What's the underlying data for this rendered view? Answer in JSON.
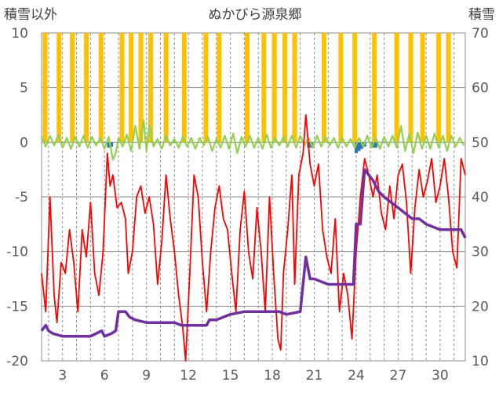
{
  "chart_data": {
    "type": "line",
    "title": "ぬかびら源泉郷",
    "left_axis_title": "積雪以外",
    "right_axis_title": "積雪",
    "x_range": [
      1.5,
      31.8
    ],
    "x_ticks": [
      3,
      6,
      9,
      12,
      15,
      18,
      21,
      24,
      27,
      30
    ],
    "x_tick_labels": [
      "3",
      "6",
      "9",
      "12",
      "15",
      "18",
      "21",
      "24",
      "27",
      "30"
    ],
    "y_left_range": [
      -20,
      10
    ],
    "y_left_ticks": [
      10,
      5,
      0,
      -5,
      -10,
      -15,
      -20
    ],
    "y_left_tick_labels": [
      "10",
      "5",
      "0",
      "-5",
      "-10",
      "-15",
      "-20"
    ],
    "y_right_range": [
      10,
      70
    ],
    "y_right_ticks": [
      70,
      60,
      50,
      40,
      30,
      20,
      10
    ],
    "y_right_tick_labels": [
      "70",
      "60",
      "50",
      "40",
      "30",
      "20",
      "10"
    ],
    "grid": "horizontal solid, vertical dashed",
    "legend": "none",
    "series": [
      {
        "key": "snowfall_bars",
        "axis": "left",
        "kind": "bars",
        "color": "#FFC000",
        "points": [
          [
            1.75,
            10
          ],
          [
            2.75,
            10
          ],
          [
            3.7,
            10
          ],
          [
            4.7,
            10
          ],
          [
            5.75,
            10
          ],
          [
            7.25,
            10
          ],
          [
            7.9,
            10
          ],
          [
            8.6,
            10
          ],
          [
            9.3,
            10
          ],
          [
            10.4,
            10
          ],
          [
            11.7,
            10
          ],
          [
            13.25,
            10
          ],
          [
            14.2,
            10
          ],
          [
            16.2,
            10
          ],
          [
            17.4,
            10
          ],
          [
            18.15,
            10
          ],
          [
            18.9,
            10
          ],
          [
            19.6,
            10
          ],
          [
            21.7,
            10
          ],
          [
            22.9,
            10
          ],
          [
            23.9,
            10
          ],
          [
            25.3,
            10
          ],
          [
            26.9,
            10
          ],
          [
            27.9,
            10
          ],
          [
            28.75,
            10
          ],
          [
            29.9,
            10
          ],
          [
            30.6,
            10
          ]
        ]
      },
      {
        "key": "rainfall_bars",
        "axis": "left",
        "kind": "bars",
        "color": "#2E75B6",
        "points": [
          [
            6.3,
            -0.5
          ],
          [
            6.5,
            -0.4
          ],
          [
            20.6,
            -0.5
          ],
          [
            20.8,
            -0.5
          ],
          [
            24.0,
            -1.0
          ],
          [
            24.2,
            -0.8
          ],
          [
            24.4,
            -0.6
          ],
          [
            24.6,
            -0.4
          ],
          [
            25.2,
            -0.5
          ],
          [
            25.4,
            -0.5
          ]
        ]
      },
      {
        "key": "wind_line",
        "axis": "left",
        "kind": "line",
        "color": "#92D050",
        "points": [
          [
            1.5,
            0.5
          ],
          [
            1.8,
            -0.4
          ],
          [
            2.1,
            0.6
          ],
          [
            2.4,
            -0.3
          ],
          [
            2.7,
            0.7
          ],
          [
            3.0,
            -0.5
          ],
          [
            3.3,
            0.4
          ],
          [
            3.6,
            -0.6
          ],
          [
            3.9,
            0.5
          ],
          [
            4.2,
            -0.4
          ],
          [
            4.5,
            0.6
          ],
          [
            4.8,
            -0.5
          ],
          [
            5.1,
            0.5
          ],
          [
            5.4,
            -0.3
          ],
          [
            5.7,
            0.4
          ],
          [
            6.0,
            -0.6
          ],
          [
            6.3,
            0.5
          ],
          [
            6.6,
            -1.6
          ],
          [
            6.8,
            -1.0
          ],
          [
            7.0,
            0.4
          ],
          [
            7.3,
            -0.4
          ],
          [
            7.6,
            0.7
          ],
          [
            7.9,
            -0.8
          ],
          [
            8.2,
            1.5
          ],
          [
            8.5,
            -0.6
          ],
          [
            8.8,
            2.0
          ],
          [
            9.0,
            -0.8
          ],
          [
            9.2,
            1.5
          ],
          [
            9.5,
            -0.4
          ],
          [
            9.8,
            0.3
          ],
          [
            10.1,
            -0.6
          ],
          [
            10.4,
            0.6
          ],
          [
            10.7,
            -0.3
          ],
          [
            11.0,
            0.3
          ],
          [
            11.3,
            -0.5
          ],
          [
            11.6,
            0.5
          ],
          [
            11.9,
            -0.4
          ],
          [
            12.2,
            0.4
          ],
          [
            12.5,
            -0.6
          ],
          [
            12.8,
            0.4
          ],
          [
            13.1,
            -0.3
          ],
          [
            13.4,
            0.5
          ],
          [
            13.7,
            -0.8
          ],
          [
            14.0,
            0.3
          ],
          [
            14.3,
            -0.5
          ],
          [
            14.6,
            0.6
          ],
          [
            14.9,
            -0.6
          ],
          [
            15.2,
            0.8
          ],
          [
            15.5,
            -1.0
          ],
          [
            15.8,
            0.5
          ],
          [
            16.1,
            -0.4
          ],
          [
            16.4,
            0.6
          ],
          [
            16.7,
            -0.5
          ],
          [
            17.0,
            0.4
          ],
          [
            17.3,
            -0.6
          ],
          [
            17.6,
            0.7
          ],
          [
            17.9,
            -0.5
          ],
          [
            18.2,
            0.4
          ],
          [
            18.5,
            -0.3
          ],
          [
            18.8,
            0.5
          ],
          [
            19.1,
            -0.4
          ],
          [
            19.4,
            0.6
          ],
          [
            19.7,
            -0.5
          ],
          [
            20.0,
            0.6
          ],
          [
            20.3,
            -0.3
          ],
          [
            20.6,
            0.4
          ],
          [
            20.9,
            -0.5
          ],
          [
            21.2,
            0.6
          ],
          [
            21.5,
            -0.4
          ],
          [
            21.8,
            0.5
          ],
          [
            22.1,
            -0.3
          ],
          [
            22.4,
            0.4
          ],
          [
            22.7,
            -0.5
          ],
          [
            23.0,
            0.4
          ],
          [
            23.3,
            -0.4
          ],
          [
            23.6,
            0.3
          ],
          [
            23.9,
            -0.5
          ],
          [
            24.2,
            0.4
          ],
          [
            24.5,
            -0.4
          ],
          [
            24.8,
            0.6
          ],
          [
            25.1,
            -0.5
          ],
          [
            25.4,
            0.4
          ],
          [
            25.7,
            -0.6
          ],
          [
            26.0,
            0.5
          ],
          [
            26.3,
            -0.4
          ],
          [
            26.6,
            0.6
          ],
          [
            26.9,
            -0.5
          ],
          [
            27.2,
            1.5
          ],
          [
            27.5,
            -0.8
          ],
          [
            27.8,
            0.8
          ],
          [
            28.1,
            -1.0
          ],
          [
            28.4,
            0.9
          ],
          [
            28.7,
            -0.6
          ],
          [
            29.0,
            0.6
          ],
          [
            29.3,
            -0.6
          ],
          [
            29.6,
            0.8
          ],
          [
            29.9,
            -0.5
          ],
          [
            30.2,
            0.6
          ],
          [
            30.5,
            -0.8
          ],
          [
            30.8,
            0.6
          ],
          [
            31.1,
            -0.4
          ],
          [
            31.4,
            0.4
          ],
          [
            31.7,
            -0.3
          ]
        ]
      },
      {
        "key": "temperature_line",
        "axis": "left",
        "kind": "line",
        "color": "#FF0000",
        "points": [
          [
            1.5,
            -12
          ],
          [
            1.8,
            -15.5
          ],
          [
            2.1,
            -5
          ],
          [
            2.4,
            -14
          ],
          [
            2.6,
            -16.5
          ],
          [
            2.9,
            -11
          ],
          [
            3.2,
            -12
          ],
          [
            3.5,
            -8
          ],
          [
            3.8,
            -11
          ],
          [
            4.1,
            -15.5
          ],
          [
            4.4,
            -8
          ],
          [
            4.7,
            -10.5
          ],
          [
            5.0,
            -5.5
          ],
          [
            5.3,
            -12
          ],
          [
            5.6,
            -14
          ],
          [
            5.9,
            -10
          ],
          [
            6.2,
            -1
          ],
          [
            6.4,
            -4
          ],
          [
            6.6,
            -3
          ],
          [
            6.9,
            -6
          ],
          [
            7.2,
            -5.5
          ],
          [
            7.5,
            -7
          ],
          [
            7.7,
            -12
          ],
          [
            8.0,
            -10
          ],
          [
            8.3,
            -5
          ],
          [
            8.6,
            -4
          ],
          [
            8.9,
            -6.5
          ],
          [
            9.2,
            -5
          ],
          [
            9.5,
            -7.5
          ],
          [
            9.8,
            -13
          ],
          [
            10.1,
            -9
          ],
          [
            10.4,
            -3
          ],
          [
            10.7,
            -7
          ],
          [
            11.0,
            -10
          ],
          [
            11.3,
            -14
          ],
          [
            11.6,
            -17
          ],
          [
            11.8,
            -20
          ],
          [
            12.1,
            -12
          ],
          [
            12.4,
            -3
          ],
          [
            12.7,
            -5
          ],
          [
            13.0,
            -11
          ],
          [
            13.3,
            -15.5
          ],
          [
            13.6,
            -10
          ],
          [
            13.9,
            -6
          ],
          [
            14.2,
            -4
          ],
          [
            14.5,
            -7
          ],
          [
            14.8,
            -8
          ],
          [
            15.1,
            -12
          ],
          [
            15.4,
            -15.5
          ],
          [
            15.7,
            -8
          ],
          [
            16.0,
            -4.5
          ],
          [
            16.3,
            -10
          ],
          [
            16.6,
            -12.5
          ],
          [
            16.9,
            -6
          ],
          [
            17.2,
            -10
          ],
          [
            17.5,
            -15.5
          ],
          [
            17.8,
            -5
          ],
          [
            18.1,
            -12
          ],
          [
            18.4,
            -18
          ],
          [
            18.6,
            -19
          ],
          [
            18.8,
            -12
          ],
          [
            19.1,
            -8
          ],
          [
            19.4,
            -3
          ],
          [
            19.6,
            -13
          ],
          [
            19.9,
            -3
          ],
          [
            20.2,
            -1
          ],
          [
            20.4,
            2.5
          ],
          [
            20.7,
            -2
          ],
          [
            21.0,
            -4
          ],
          [
            21.3,
            -2
          ],
          [
            21.6,
            -8
          ],
          [
            21.9,
            -10.5
          ],
          [
            22.2,
            -12
          ],
          [
            22.5,
            -7
          ],
          [
            22.8,
            -15.5
          ],
          [
            23.1,
            -12
          ],
          [
            23.4,
            -14
          ],
          [
            23.7,
            -18
          ],
          [
            24.0,
            -10
          ],
          [
            24.3,
            -5
          ],
          [
            24.6,
            -1.5
          ],
          [
            24.9,
            -3
          ],
          [
            25.2,
            -5
          ],
          [
            25.5,
            -3
          ],
          [
            25.8,
            -6.5
          ],
          [
            26.1,
            -8
          ],
          [
            26.4,
            -4
          ],
          [
            26.7,
            -7
          ],
          [
            27.0,
            -3
          ],
          [
            27.3,
            -2
          ],
          [
            27.6,
            -5.5
          ],
          [
            27.9,
            -12
          ],
          [
            28.2,
            -6
          ],
          [
            28.5,
            -2.5
          ],
          [
            28.8,
            -5
          ],
          [
            29.1,
            -3.5
          ],
          [
            29.4,
            -1.5
          ],
          [
            29.7,
            -5.5
          ],
          [
            30.0,
            -4
          ],
          [
            30.3,
            -1.5
          ],
          [
            30.6,
            -5
          ],
          [
            30.9,
            -10
          ],
          [
            31.2,
            -11.5
          ],
          [
            31.5,
            -1.5
          ],
          [
            31.8,
            -3
          ]
        ]
      },
      {
        "key": "snow_depth_line",
        "axis": "right",
        "kind": "line",
        "color": "#7030A0",
        "points": [
          [
            1.5,
            15.5
          ],
          [
            1.8,
            16.5
          ],
          [
            2.0,
            15.5
          ],
          [
            2.3,
            15
          ],
          [
            3.0,
            14.5
          ],
          [
            4.0,
            14.5
          ],
          [
            5.0,
            14.5
          ],
          [
            5.8,
            15.5
          ],
          [
            6.0,
            14.5
          ],
          [
            6.5,
            15
          ],
          [
            6.8,
            15.5
          ],
          [
            7.0,
            19
          ],
          [
            7.5,
            19
          ],
          [
            7.8,
            18
          ],
          [
            8.2,
            17.5
          ],
          [
            9.0,
            17
          ],
          [
            10.0,
            17
          ],
          [
            11.0,
            17
          ],
          [
            11.5,
            16.5
          ],
          [
            12.5,
            16.5
          ],
          [
            13.3,
            16.5
          ],
          [
            13.5,
            17.5
          ],
          [
            14.0,
            17.5
          ],
          [
            15.0,
            18.5
          ],
          [
            16.0,
            19
          ],
          [
            17.0,
            19
          ],
          [
            18.5,
            19
          ],
          [
            19.0,
            18.5
          ],
          [
            20.0,
            19
          ],
          [
            20.4,
            29
          ],
          [
            20.7,
            25
          ],
          [
            21.0,
            25
          ],
          [
            22.0,
            24
          ],
          [
            23.0,
            24
          ],
          [
            23.8,
            24
          ],
          [
            24.0,
            35
          ],
          [
            24.3,
            35
          ],
          [
            24.6,
            45
          ],
          [
            24.9,
            44
          ],
          [
            25.2,
            43
          ],
          [
            25.6,
            41
          ],
          [
            26.0,
            40
          ],
          [
            26.5,
            39
          ],
          [
            27.0,
            38
          ],
          [
            27.5,
            37
          ],
          [
            28.0,
            36
          ],
          [
            28.5,
            36
          ],
          [
            29.0,
            35
          ],
          [
            30.0,
            34
          ],
          [
            31.0,
            34
          ],
          [
            31.5,
            34
          ],
          [
            31.8,
            32.5
          ]
        ]
      }
    ]
  }
}
